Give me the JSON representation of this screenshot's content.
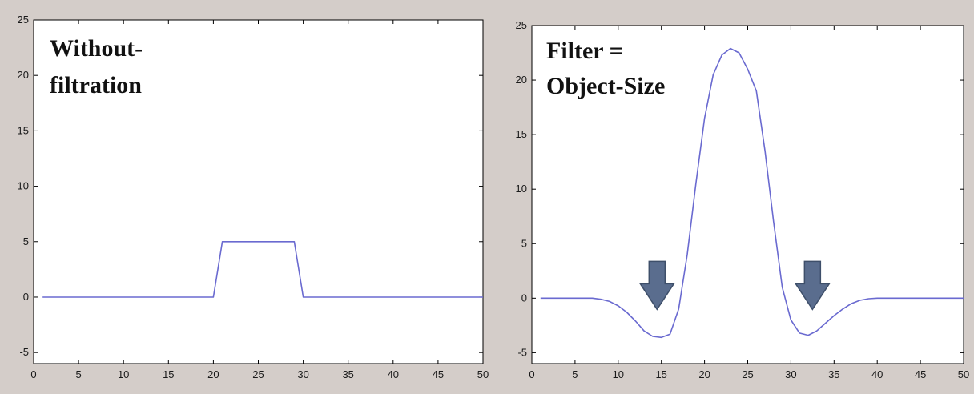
{
  "colors": {
    "background": "#d4cdc9",
    "plot_bg": "#ffffff",
    "axis": "#000000",
    "line": "#6a6ad0",
    "arrow_fill": "#5a6d8e",
    "arrow_stroke": "#3e4f6a"
  },
  "chart_data": [
    {
      "type": "line",
      "annotation_lines": [
        "Without-",
        "filtration"
      ],
      "xlim": [
        0,
        50
      ],
      "ylim": [
        -6,
        25
      ],
      "x_ticks": [
        0,
        5,
        10,
        15,
        20,
        25,
        30,
        35,
        40,
        45,
        50
      ],
      "y_ticks": [
        -5,
        0,
        5,
        10,
        15,
        20,
        25
      ],
      "grid": false,
      "series": [
        {
          "x": [
            1,
            20,
            21,
            29,
            30,
            50
          ],
          "y": [
            0,
            0,
            5,
            5,
            0,
            0
          ]
        }
      ]
    },
    {
      "type": "line",
      "annotation_lines": [
        "Filter =",
        "Object-Size"
      ],
      "xlim": [
        0,
        50
      ],
      "ylim": [
        -6,
        25
      ],
      "x_ticks": [
        0,
        5,
        10,
        15,
        20,
        25,
        30,
        35,
        40,
        45,
        50
      ],
      "y_ticks": [
        -5,
        0,
        5,
        10,
        15,
        20,
        25
      ],
      "grid": false,
      "arrows_at": [
        {
          "x": 14.5,
          "y": 0
        },
        {
          "x": 32.5,
          "y": 0
        }
      ],
      "series": [
        {
          "x": [
            1,
            2,
            3,
            4,
            5,
            6,
            7,
            8,
            9,
            10,
            11,
            12,
            13,
            14,
            15,
            16,
            17,
            18,
            19,
            20,
            21,
            22,
            23,
            24,
            25,
            26,
            27,
            28,
            29,
            30,
            31,
            32,
            33,
            34,
            35,
            36,
            37,
            38,
            39,
            40,
            41,
            42,
            43,
            44,
            45,
            46,
            47,
            48,
            49,
            50
          ],
          "y": [
            0,
            0,
            0,
            0,
            0,
            0,
            0,
            -0.1,
            -0.3,
            -0.7,
            -1.3,
            -2.1,
            -3.0,
            -3.5,
            -3.6,
            -3.3,
            -1.0,
            4.0,
            10.5,
            16.5,
            20.5,
            22.3,
            22.9,
            22.5,
            21.0,
            19.0,
            13.5,
            7.0,
            1.0,
            -2.0,
            -3.2,
            -3.4,
            -3.0,
            -2.3,
            -1.6,
            -1.0,
            -0.5,
            -0.2,
            -0.05,
            0,
            0,
            0,
            0,
            0,
            0,
            0,
            0,
            0,
            0,
            0
          ]
        }
      ]
    }
  ]
}
